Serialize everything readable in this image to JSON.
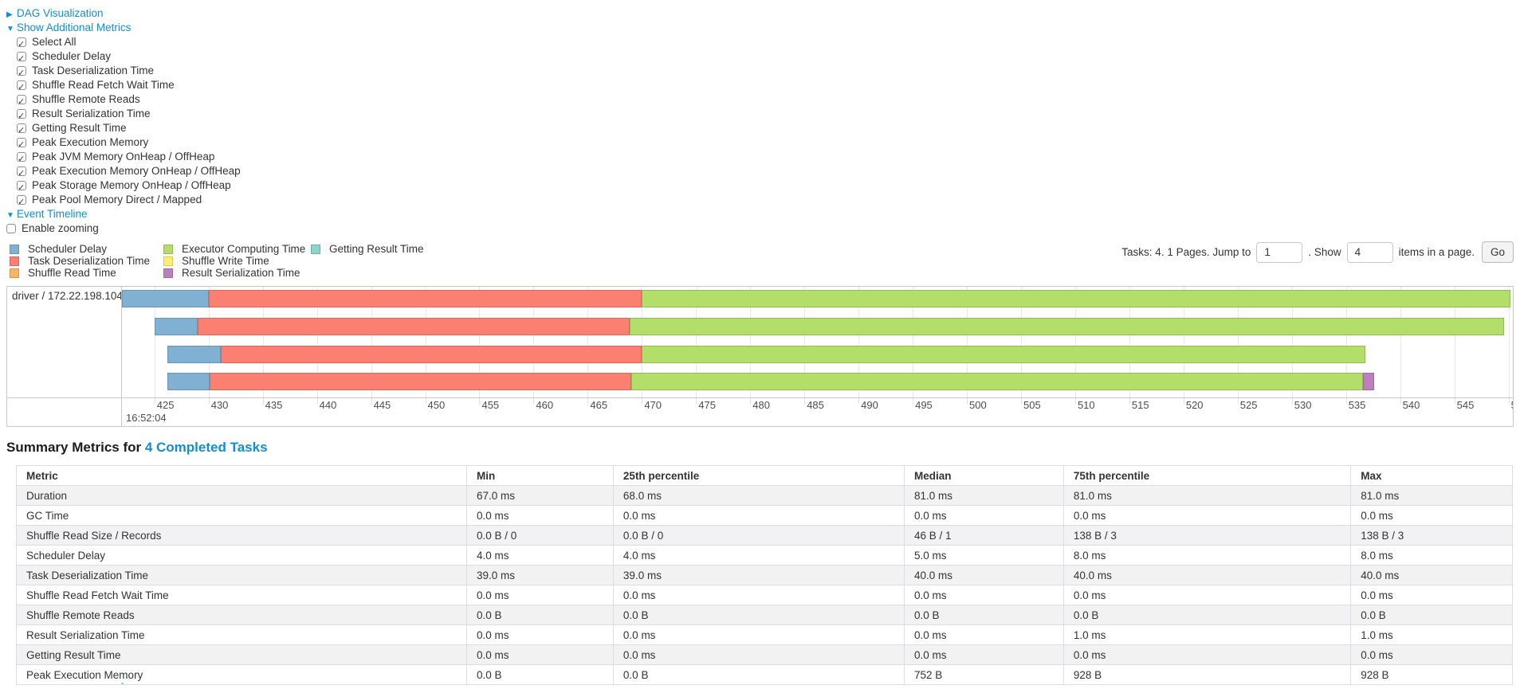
{
  "colors": {
    "link": "#0f8ed8"
  },
  "toggles": {
    "dag": {
      "label": "DAG Visualization",
      "arrow": "collapsed"
    },
    "metrics": {
      "label": "Show Additional Metrics",
      "arrow": "expanded"
    },
    "timeline": {
      "label": "Event Timeline",
      "arrow": "expanded"
    }
  },
  "metric_checkboxes": [
    {
      "label": "Select All",
      "checked": true
    },
    {
      "label": "Scheduler Delay",
      "checked": true
    },
    {
      "label": "Task Deserialization Time",
      "checked": true
    },
    {
      "label": "Shuffle Read Fetch Wait Time",
      "checked": true
    },
    {
      "label": "Shuffle Remote Reads",
      "checked": true
    },
    {
      "label": "Result Serialization Time",
      "checked": true
    },
    {
      "label": "Getting Result Time",
      "checked": true
    },
    {
      "label": "Peak Execution Memory",
      "checked": true
    },
    {
      "label": "Peak JVM Memory OnHeap / OffHeap",
      "checked": true
    },
    {
      "label": "Peak Execution Memory OnHeap / OffHeap",
      "checked": true
    },
    {
      "label": "Peak Storage Memory OnHeap / OffHeap",
      "checked": true
    },
    {
      "label": "Peak Pool Memory Direct / Mapped",
      "checked": true
    }
  ],
  "enable_zooming": {
    "label": "Enable zooming",
    "checked": false
  },
  "legend": [
    {
      "key": "scheduler_delay",
      "label": "Scheduler Delay",
      "fill": "#80B1D3",
      "stroke": "#6B94B0"
    },
    {
      "key": "task_deserialization",
      "label": "Task Deserialization Time",
      "fill": "#FB8072",
      "stroke": "#D26B5F"
    },
    {
      "key": "shuffle_read",
      "label": "Shuffle Read Time",
      "fill": "#FDB462",
      "stroke": "#D39651"
    },
    {
      "key": "executor_computing",
      "label": "Executor Computing Time",
      "fill": "#B3DE69",
      "stroke": "#95B957"
    },
    {
      "key": "shuffle_write",
      "label": "Shuffle Write Time",
      "fill": "#FFED6F",
      "stroke": "#D5C65C"
    },
    {
      "key": "result_serialization",
      "label": "Result Serialization Time",
      "fill": "#BC80BD",
      "stroke": "#9D6B9E"
    },
    {
      "key": "getting_result",
      "label": "Getting Result Time",
      "fill": "#8DD3C7",
      "stroke": "#75B0A6"
    }
  ],
  "pagination": {
    "info": "Tasks: 4. 1 Pages. Jump to",
    "jump_value": "1",
    "show_label": ". Show",
    "show_value": "4",
    "suffix": "items in a page.",
    "go_label": "Go"
  },
  "chart_data": {
    "type": "timeline-gantt",
    "group_label": "driver / 172.22.198.104",
    "axis": {
      "min": 422.0,
      "max": 550.4,
      "tick_start": 425,
      "tick_step": 5,
      "tick_end": 550,
      "major_label": "16:52:04",
      "grid": true
    },
    "tasks": [
      {
        "start": 422.0,
        "segments": [
          [
            "scheduler_delay",
            430.0
          ],
          [
            "task_deserialization",
            470.0
          ],
          [
            "executor_computing",
            550.2
          ]
        ]
      },
      {
        "start": 425.0,
        "segments": [
          [
            "scheduler_delay",
            429.0
          ],
          [
            "task_deserialization",
            468.9
          ],
          [
            "executor_computing",
            549.6
          ]
        ]
      },
      {
        "start": 426.2,
        "segments": [
          [
            "scheduler_delay",
            431.1
          ],
          [
            "task_deserialization",
            470.0
          ],
          [
            "executor_computing",
            536.8
          ]
        ]
      },
      {
        "start": 426.2,
        "segments": [
          [
            "scheduler_delay",
            430.1
          ],
          [
            "task_deserialization",
            469.0
          ],
          [
            "executor_computing",
            536.6
          ],
          [
            "result_serialization",
            537.6
          ]
        ]
      }
    ]
  },
  "summary": {
    "title_prefix": "Summary Metrics for ",
    "title_link": "4 Completed Tasks",
    "columns": [
      "Metric",
      "Min",
      "25th percentile",
      "Median",
      "75th percentile",
      "Max"
    ],
    "col_widths_pct": [
      30.1,
      9.8,
      19.45,
      10.65,
      19.2,
      10.8
    ],
    "rows": [
      {
        "metric": "Duration",
        "values": [
          "67.0 ms",
          "68.0 ms",
          "81.0 ms",
          "81.0 ms",
          "81.0 ms"
        ]
      },
      {
        "metric": "GC Time",
        "values": [
          "0.0 ms",
          "0.0 ms",
          "0.0 ms",
          "0.0 ms",
          "0.0 ms"
        ]
      },
      {
        "metric": "Shuffle Read Size / Records",
        "values": [
          "0.0 B / 0",
          "0.0 B / 0",
          "46 B / 1",
          "138 B / 3",
          "138 B / 3"
        ]
      },
      {
        "metric": "Scheduler Delay",
        "values": [
          "4.0 ms",
          "4.0 ms",
          "5.0 ms",
          "8.0 ms",
          "8.0 ms"
        ]
      },
      {
        "metric": "Task Deserialization Time",
        "values": [
          "39.0 ms",
          "39.0 ms",
          "40.0 ms",
          "40.0 ms",
          "40.0 ms"
        ]
      },
      {
        "metric": "Shuffle Read Fetch Wait Time",
        "values": [
          "0.0 ms",
          "0.0 ms",
          "0.0 ms",
          "0.0 ms",
          "0.0 ms"
        ]
      },
      {
        "metric": "Shuffle Remote Reads",
        "values": [
          "0.0 B",
          "0.0 B",
          "0.0 B",
          "0.0 B",
          "0.0 B"
        ]
      },
      {
        "metric": "Result Serialization Time",
        "values": [
          "0.0 ms",
          "0.0 ms",
          "0.0 ms",
          "1.0 ms",
          "1.0 ms"
        ]
      },
      {
        "metric": "Getting Result Time",
        "values": [
          "0.0 ms",
          "0.0 ms",
          "0.0 ms",
          "0.0 ms",
          "0.0 ms"
        ]
      },
      {
        "metric": "Peak Execution Memory",
        "values": [
          "0.0 B",
          "0.0 B",
          "752 B",
          "928 B",
          "928 B"
        ]
      }
    ]
  }
}
